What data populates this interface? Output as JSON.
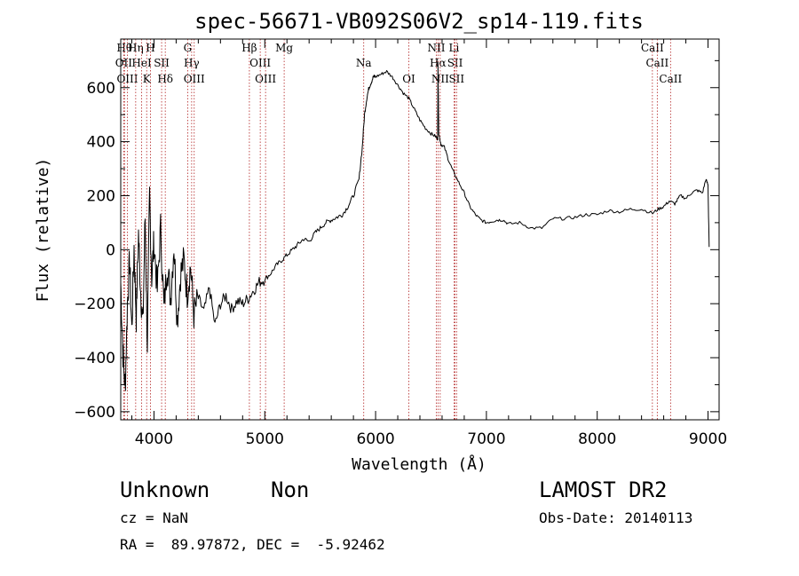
{
  "chart_data": {
    "type": "line",
    "title": "spec-56671-VB092S06V2_sp14-119.fits",
    "xlabel": "Wavelength (Å)",
    "ylabel": "Flux (relative)",
    "xlim": [
      3700,
      9100
    ],
    "ylim": [
      -630,
      780
    ],
    "xticks": [
      4000,
      5000,
      6000,
      7000,
      8000,
      9000
    ],
    "yticks": [
      -600,
      -400,
      -200,
      0,
      200,
      400,
      600
    ],
    "grid": false,
    "colors": {
      "spectrum": "#000000",
      "line_marker": "#b22222"
    },
    "series": [
      {
        "x": [
          3700,
          3720,
          3740,
          3760,
          3780,
          3800,
          3820,
          3840,
          3860,
          3880,
          3900,
          3920,
          3940,
          3960,
          3980,
          4000,
          4030,
          4060,
          4090,
          4120,
          4150,
          4180,
          4210,
          4240,
          4270,
          4300,
          4330,
          4360,
          4400,
          4450,
          4500,
          4550,
          4600,
          4650,
          4700,
          4750,
          4800,
          4850,
          4900,
          4950,
          5000,
          5050,
          5100,
          5150,
          5200,
          5250,
          5300,
          5350,
          5400,
          5450,
          5500,
          5550,
          5600,
          5650,
          5700,
          5750,
          5800,
          5850,
          5880,
          5900,
          5920,
          5940,
          5960,
          5980,
          6000,
          6050,
          6100,
          6150,
          6200,
          6250,
          6300,
          6350,
          6400,
          6450,
          6500,
          6540,
          6560,
          6563,
          6570,
          6590,
          6620,
          6660,
          6700,
          6750,
          6800,
          6850,
          6900,
          6950,
          7000,
          7050,
          7100,
          7150,
          7200,
          7300,
          7400,
          7500,
          7600,
          7700,
          7800,
          7900,
          8000,
          8100,
          8200,
          8300,
          8400,
          8500,
          8550,
          8600,
          8650,
          8700,
          8750,
          8800,
          8850,
          8900,
          8950,
          8980,
          9000,
          9010
        ],
        "y": [
          -120,
          -380,
          -520,
          -200,
          -40,
          -300,
          10,
          -250,
          60,
          -150,
          -280,
          120,
          -350,
          200,
          -100,
          30,
          -150,
          80,
          -220,
          -50,
          -180,
          20,
          -260,
          -90,
          -40,
          -160,
          -60,
          -240,
          -180,
          -230,
          -140,
          -280,
          -200,
          -170,
          -220,
          -190,
          -200,
          -180,
          -150,
          -120,
          -110,
          -90,
          -60,
          -40,
          -20,
          0,
          20,
          40,
          30,
          60,
          80,
          100,
          110,
          120,
          130,
          160,
          200,
          260,
          380,
          500,
          560,
          600,
          620,
          640,
          640,
          650,
          660,
          640,
          610,
          580,
          560,
          520,
          480,
          450,
          430,
          420,
          410,
          700,
          430,
          390,
          380,
          330,
          290,
          250,
          210,
          160,
          130,
          110,
          100,
          105,
          110,
          110,
          95,
          100,
          80,
          80,
          115,
          115,
          120,
          130,
          130,
          145,
          140,
          150,
          150,
          135,
          150,
          160,
          180,
          170,
          200,
          190,
          210,
          220,
          210,
          260,
          240,
          10
        ]
      }
    ],
    "spectral_lines": [
      {
        "wavelength": 3734,
        "label": "Hθ"
      },
      {
        "wavelength": 3727,
        "label": "OII"
      },
      {
        "wavelength": 3760,
        "label": "OIII"
      },
      {
        "wavelength": 3835,
        "label": "Hη"
      },
      {
        "wavelength": 3889,
        "label": "HeI"
      },
      {
        "wavelength": 3934,
        "label": "K"
      },
      {
        "wavelength": 3968,
        "label": "H"
      },
      {
        "wavelength": 4069,
        "label": "SII"
      },
      {
        "wavelength": 4102,
        "label": "Hδ"
      },
      {
        "wavelength": 4304,
        "label": "G"
      },
      {
        "wavelength": 4340,
        "label": "Hγ"
      },
      {
        "wavelength": 4363,
        "label": "OIII"
      },
      {
        "wavelength": 4861,
        "label": "Hβ"
      },
      {
        "wavelength": 4959,
        "label": "OIII"
      },
      {
        "wavelength": 5007,
        "label": "OIII"
      },
      {
        "wavelength": 5175,
        "label": "Mg"
      },
      {
        "wavelength": 5893,
        "label": "Na"
      },
      {
        "wavelength": 6300,
        "label": "OI"
      },
      {
        "wavelength": 6548,
        "label": "NII"
      },
      {
        "wavelength": 6563,
        "label": "Hα"
      },
      {
        "wavelength": 6583,
        "label": "NII"
      },
      {
        "wavelength": 6708,
        "label": "Li"
      },
      {
        "wavelength": 6717,
        "label": "SII"
      },
      {
        "wavelength": 6731,
        "label": "SII"
      },
      {
        "wavelength": 8498,
        "label": "CaII"
      },
      {
        "wavelength": 8542,
        "label": "CaII"
      },
      {
        "wavelength": 8662,
        "label": "CaII"
      }
    ]
  },
  "footer": {
    "class_label": "Unknown",
    "subclass_label": "Non",
    "survey": "LAMOST DR2",
    "cz": "cz = NaN",
    "obs_date": "Obs-Date: 20140113",
    "coords": "RA =  89.97872, DEC =  -5.92462"
  }
}
